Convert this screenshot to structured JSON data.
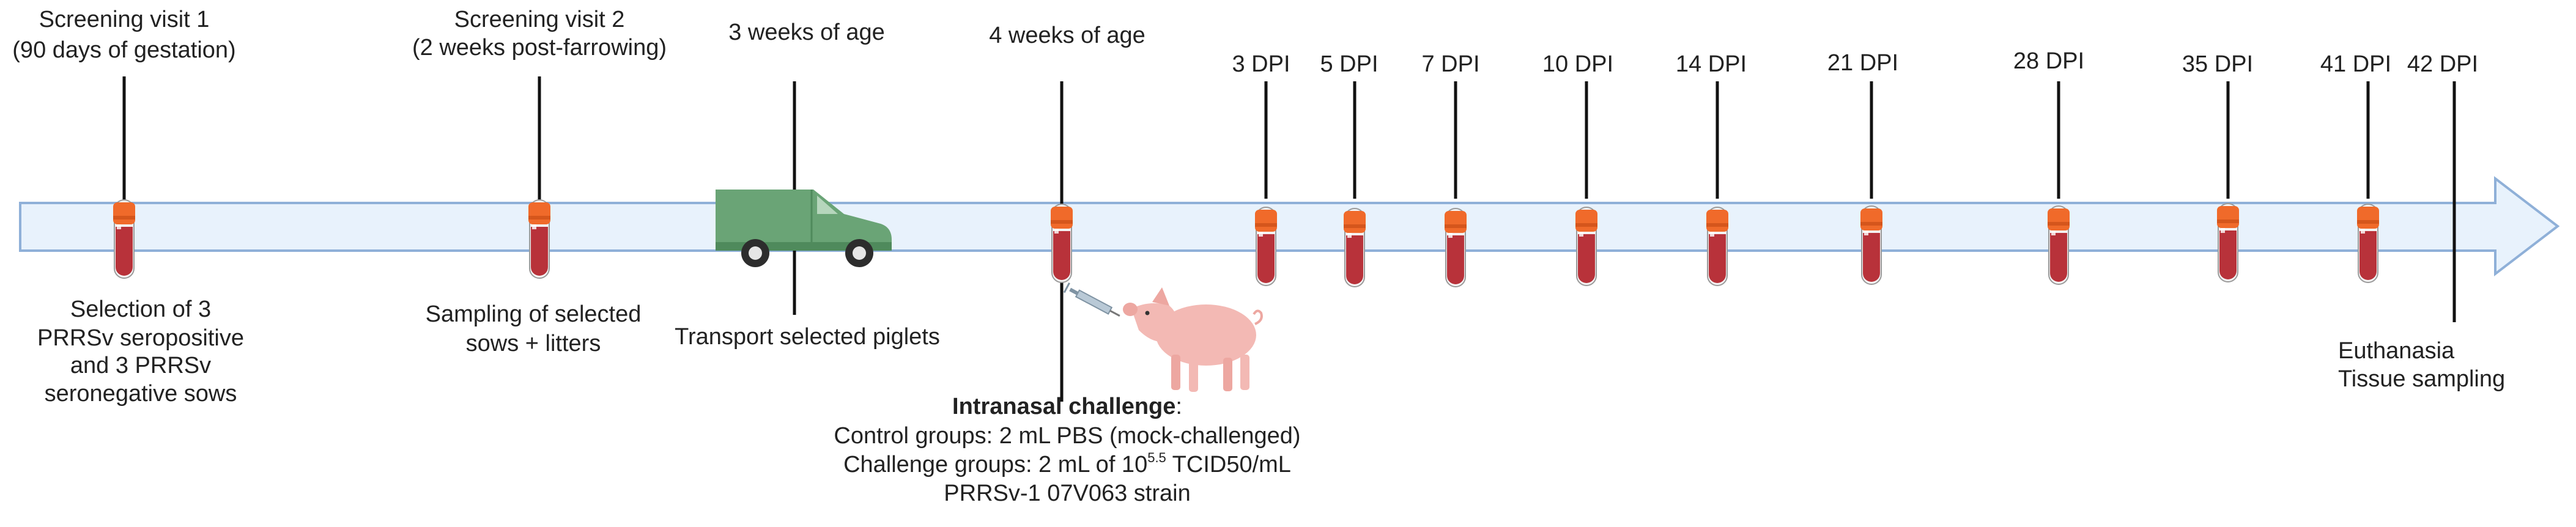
{
  "timeline": {
    "colors": {
      "arrow_fill": "#e8f2fc",
      "arrow_stroke": "#8fb0d8",
      "line": "#111111",
      "tube_cap": "#f06a2a",
      "tube_blood": "#b8323a",
      "tube_glass": "#f4f4f4",
      "van": "#6aa476",
      "van_window": "#b6d6bc",
      "pig": "#f3b9b4",
      "syringe": "#b9c9d6"
    },
    "top_labels": {
      "screening1_line1": "Screening visit 1",
      "screening1_line2": "(90 days of gestation)",
      "screening2_line1": "Screening visit 2",
      "screening2_line2": "(2 weeks post-farrowing)",
      "age3": "3 weeks of age",
      "age4": "4 weeks of age"
    },
    "dpi_labels": [
      "3 DPI",
      "5 DPI",
      "7 DPI",
      "10 DPI",
      "14 DPI",
      "21 DPI",
      "28 DPI",
      "35 DPI",
      "41 DPI",
      "42 DPI"
    ],
    "bottom_labels": {
      "selection_line1": "Selection of 3",
      "selection_line2": "PRRSv seropositive",
      "selection_line3": "and 3 PRRSv",
      "selection_line4": "seronegative  sows",
      "sampling_line1": "Sampling of selected",
      "sampling_line2": "sows + litters",
      "transport": "Transport selected piglets",
      "euthanasia": "Euthanasia",
      "tissue": "Tissue sampling"
    },
    "challenge": {
      "title": "Intranasal challenge",
      "colon": ":",
      "control": "Control groups: 2 mL PBS (mock-challenged)",
      "challenge_prefix": "Challenge groups: 2 mL of 10",
      "exponent": "5.5",
      "challenge_suffix": " TCID50/mL",
      "strain": "PRRSv-1 07V063 strain"
    },
    "icons": {
      "tube": "blood-sample-tube-icon",
      "van": "transport-van-icon",
      "pig": "piglet-intranasal-inoculation-icon"
    }
  }
}
